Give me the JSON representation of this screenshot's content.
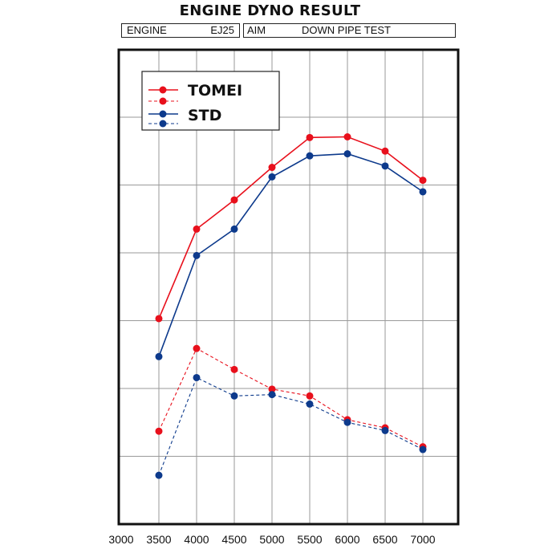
{
  "header": {
    "title": "ENGINE DYNO RESULT",
    "engine_label": "ENGINE",
    "engine_value": "EJ25",
    "aim_label": "AIM",
    "aim_value": "DOWN PIPE TEST"
  },
  "colors": {
    "tomei": "#e8101c",
    "std": "#0d3a8c",
    "grid": "#9a9a9a",
    "frame": "#111111"
  },
  "chart_data": {
    "type": "line",
    "title": "ENGINE DYNO RESULT",
    "xlabel": "",
    "ylabel": "",
    "xlim": [
      3000,
      7400
    ],
    "x_ticks": [
      3000,
      3500,
      4000,
      4500,
      5000,
      5500,
      6000,
      6500,
      7000
    ],
    "ylim": [
      0,
      7
    ],
    "y_tick_labels_shown": false,
    "grid": true,
    "legend_position": "top-left",
    "legend": [
      {
        "label": "TOMEI",
        "style": "solid",
        "color": "#e8101c"
      },
      {
        "label": "",
        "style": "dashed",
        "color": "#e8101c"
      },
      {
        "label": "STD",
        "style": "solid",
        "color": "#0d3a8c"
      },
      {
        "label": "",
        "style": "dashed",
        "color": "#0d3a8c"
      }
    ],
    "x": [
      3500,
      4000,
      4500,
      5000,
      5500,
      6000,
      6500,
      7000
    ],
    "series": [
      {
        "name": "TOMEI",
        "style": "solid",
        "color": "#e8101c",
        "values": [
          3.03,
          4.35,
          4.78,
          5.26,
          5.7,
          5.71,
          5.5,
          5.07
        ]
      },
      {
        "name": "STD",
        "style": "solid",
        "color": "#0d3a8c",
        "values": [
          2.47,
          3.96,
          4.35,
          5.12,
          5.43,
          5.46,
          5.28,
          4.9
        ]
      },
      {
        "name": "TOMEI",
        "style": "dashed",
        "color": "#e8101c",
        "values": [
          1.37,
          2.59,
          2.28,
          1.99,
          1.89,
          1.54,
          1.42,
          1.14
        ]
      },
      {
        "name": "STD",
        "style": "dashed",
        "color": "#0d3a8c",
        "values": [
          0.72,
          2.16,
          1.89,
          1.91,
          1.77,
          1.5,
          1.38,
          1.1
        ]
      }
    ]
  }
}
